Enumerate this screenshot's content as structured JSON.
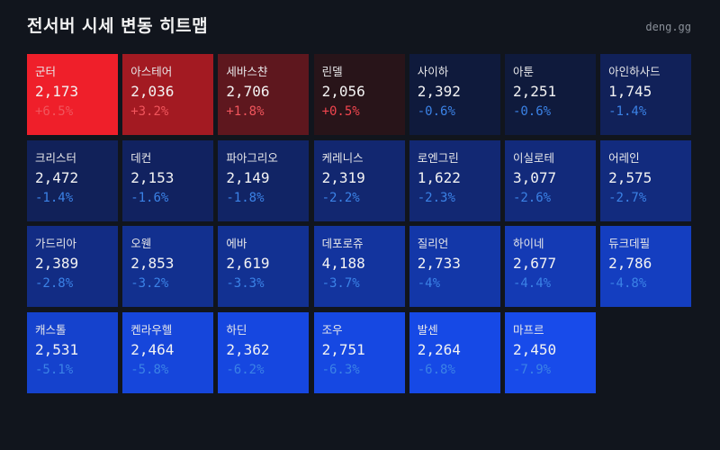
{
  "header": {
    "title": "전서버 시세 변동 히트맵",
    "brand": "deng.gg"
  },
  "cells": [
    {
      "name": "군터",
      "price": "2,173",
      "change": "+6.5%",
      "bg": "#ef1f2a",
      "fg": "#f0555c"
    },
    {
      "name": "아스테어",
      "price": "2,036",
      "change": "+3.2%",
      "bg": "#a31a22",
      "fg": "#f0555c"
    },
    {
      "name": "세바스챤",
      "price": "2,706",
      "change": "+1.8%",
      "bg": "#5e171e",
      "fg": "#f0555c"
    },
    {
      "name": "린델",
      "price": "2,056",
      "change": "+0.5%",
      "bg": "#281419",
      "fg": "#f0454e"
    },
    {
      "name": "사이하",
      "price": "2,392",
      "change": "-0.6%",
      "bg": "#0f1a3c",
      "fg": "#3b82e6"
    },
    {
      "name": "아툰",
      "price": "2,251",
      "change": "-0.6%",
      "bg": "#0f1a3c",
      "fg": "#3b82e6"
    },
    {
      "name": "아인하사드",
      "price": "1,745",
      "change": "-1.4%",
      "bg": "#112159",
      "fg": "#3b82e6"
    },
    {
      "name": "크리스터",
      "price": "2,472",
      "change": "-1.4%",
      "bg": "#112159",
      "fg": "#3b82e6"
    },
    {
      "name": "데컨",
      "price": "2,153",
      "change": "-1.6%",
      "bg": "#112260",
      "fg": "#3b82e6"
    },
    {
      "name": "파아그리오",
      "price": "2,149",
      "change": "-1.8%",
      "bg": "#112465",
      "fg": "#3b82e6"
    },
    {
      "name": "케레니스",
      "price": "2,319",
      "change": "-2.2%",
      "bg": "#122770",
      "fg": "#3b82e6"
    },
    {
      "name": "로엔그린",
      "price": "1,622",
      "change": "-2.3%",
      "bg": "#122873",
      "fg": "#3b82e6"
    },
    {
      "name": "이실로테",
      "price": "3,077",
      "change": "-2.6%",
      "bg": "#122a7b",
      "fg": "#3b82e6"
    },
    {
      "name": "어레인",
      "price": "2,575",
      "change": "-2.7%",
      "bg": "#122b7e",
      "fg": "#3b82e6"
    },
    {
      "name": "가드리아",
      "price": "2,389",
      "change": "-2.8%",
      "bg": "#122c84",
      "fg": "#3b82e6"
    },
    {
      "name": "오웬",
      "price": "2,853",
      "change": "-3.2%",
      "bg": "#12308f",
      "fg": "#3b82e6"
    },
    {
      "name": "에바",
      "price": "2,619",
      "change": "-3.3%",
      "bg": "#123192",
      "fg": "#3b82e6"
    },
    {
      "name": "데포로쥬",
      "price": "4,188",
      "change": "-3.7%",
      "bg": "#13349e",
      "fg": "#3b82e6"
    },
    {
      "name": "질리언",
      "price": "2,733",
      "change": "-4%",
      "bg": "#1337a8",
      "fg": "#3b82e6"
    },
    {
      "name": "하이네",
      "price": "2,677",
      "change": "-4.4%",
      "bg": "#143ab4",
      "fg": "#3b82e6"
    },
    {
      "name": "듀크데필",
      "price": "2,786",
      "change": "-4.8%",
      "bg": "#143ec0",
      "fg": "#3b82e6"
    },
    {
      "name": "캐스톨",
      "price": "2,531",
      "change": "-5.1%",
      "bg": "#1542cd",
      "fg": "#3b82e6"
    },
    {
      "name": "켄라우헬",
      "price": "2,464",
      "change": "-5.8%",
      "bg": "#1646db",
      "fg": "#3b82e6"
    },
    {
      "name": "하딘",
      "price": "2,362",
      "change": "-6.2%",
      "bg": "#1647e0",
      "fg": "#3b82e6"
    },
    {
      "name": "조우",
      "price": "2,751",
      "change": "-6.3%",
      "bg": "#1648e2",
      "fg": "#3b82e6"
    },
    {
      "name": "발센",
      "price": "2,264",
      "change": "-6.8%",
      "bg": "#1649e6",
      "fg": "#3b82e6"
    },
    {
      "name": "마프르",
      "price": "2,450",
      "change": "-7.9%",
      "bg": "#184bea",
      "fg": "#3b82e6"
    }
  ],
  "chart_data": {
    "type": "heatmap",
    "title": "전서버 시세 변동 히트맵",
    "layout": {
      "columns": 7,
      "rows": 4
    },
    "categories": [
      "군터",
      "아스테어",
      "세바스챤",
      "린델",
      "사이하",
      "아툰",
      "아인하사드",
      "크리스터",
      "데컨",
      "파아그리오",
      "케레니스",
      "로엔그린",
      "이실로테",
      "어레인",
      "가드리아",
      "오웬",
      "에바",
      "데포로쥬",
      "질리언",
      "하이네",
      "듀크데필",
      "캐스톨",
      "켄라우헬",
      "하딘",
      "조우",
      "발센",
      "마프르"
    ],
    "series": [
      {
        "name": "price",
        "values": [
          2173,
          2036,
          2706,
          2056,
          2392,
          2251,
          1745,
          2472,
          2153,
          2149,
          2319,
          1622,
          3077,
          2575,
          2389,
          2853,
          2619,
          4188,
          2733,
          2677,
          2786,
          2531,
          2464,
          2362,
          2751,
          2264,
          2450
        ]
      },
      {
        "name": "change_pct",
        "values": [
          6.5,
          3.2,
          1.8,
          0.5,
          -0.6,
          -0.6,
          -1.4,
          -1.4,
          -1.6,
          -1.8,
          -2.2,
          -2.3,
          -2.6,
          -2.7,
          -2.8,
          -3.2,
          -3.3,
          -3.7,
          -4,
          -4.4,
          -4.8,
          -5.1,
          -5.8,
          -6.2,
          -6.3,
          -6.8,
          -7.9
        ]
      }
    ],
    "color_scale": {
      "positive": "#ef1f2a",
      "neutral": "#11151d",
      "negative": "#184bea"
    }
  }
}
